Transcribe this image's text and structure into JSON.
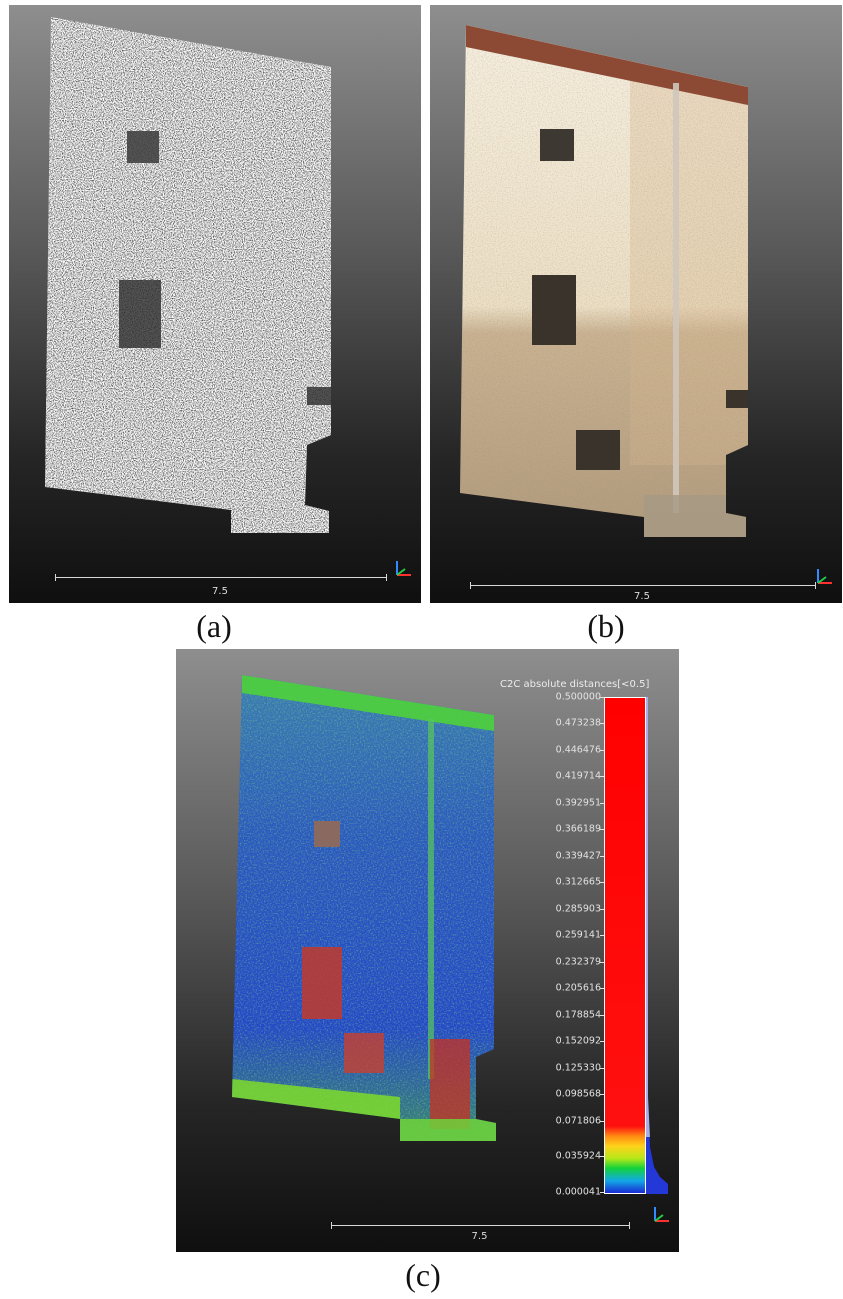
{
  "panels": [
    {
      "caption": "(a)",
      "scale_label": "7.5"
    },
    {
      "caption": "(b)",
      "scale_label": "7.5"
    },
    {
      "caption": "(c)",
      "scale_label": "7.5"
    }
  ],
  "colorbar": {
    "title": "C2C absolute distances[<0.5]",
    "tick_labels": [
      "0.500000",
      "0.473238",
      "0.446476",
      "0.419714",
      "0.392951",
      "0.366189",
      "0.339427",
      "0.312665",
      "0.285903",
      "0.259141",
      "0.232379",
      "0.205616",
      "0.178854",
      "0.152092",
      "0.125330",
      "0.098568",
      "0.071806",
      "0.035924",
      "0.000041"
    ],
    "colors": [
      "#1a2bd4",
      "#12d23a",
      "#ffd21a",
      "#ff0000"
    ]
  },
  "colors": {
    "background_top": "#8e8e8e",
    "background_bottom": "#0f0f0f"
  }
}
